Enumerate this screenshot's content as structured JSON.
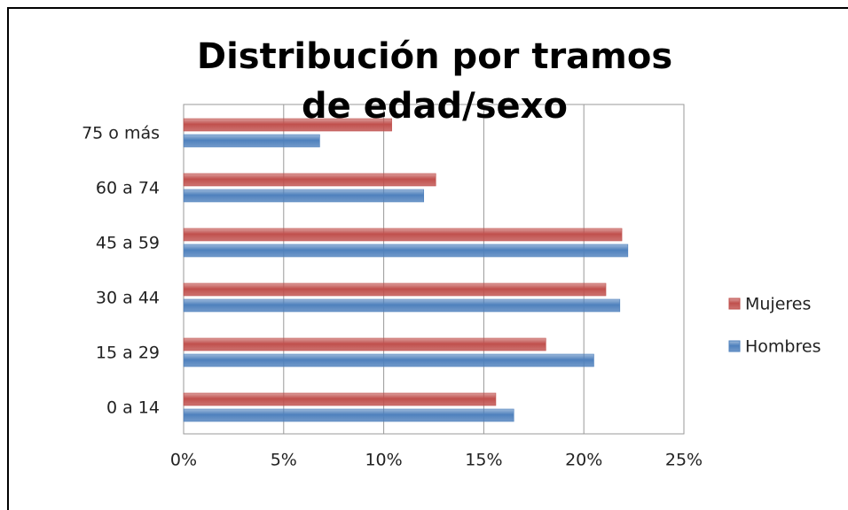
{
  "chart_data": {
    "type": "hbar",
    "title": "Distribución por tramos de edad/sexo",
    "categories": [
      "0 a 14",
      "15 a 29",
      "30 a 44",
      "45 a 59",
      "60 a 74",
      "75 o más"
    ],
    "series": [
      {
        "name": "Mujeres",
        "color": "#c0504d",
        "values": [
          15.6,
          18.1,
          21.1,
          21.9,
          12.6,
          10.4
        ]
      },
      {
        "name": "Hombres",
        "color": "#4f81bd",
        "values": [
          16.5,
          20.5,
          21.8,
          22.2,
          12.0,
          6.8
        ]
      }
    ],
    "xlim": [
      0,
      25
    ],
    "xticks": [
      {
        "value": 0,
        "label": "0%"
      },
      {
        "value": 5,
        "label": "5%"
      },
      {
        "value": 10,
        "label": "10%"
      },
      {
        "value": 15,
        "label": "15%"
      },
      {
        "value": 20,
        "label": "20%"
      },
      {
        "value": 25,
        "label": "25%"
      }
    ],
    "grid": true,
    "legend": "right"
  }
}
